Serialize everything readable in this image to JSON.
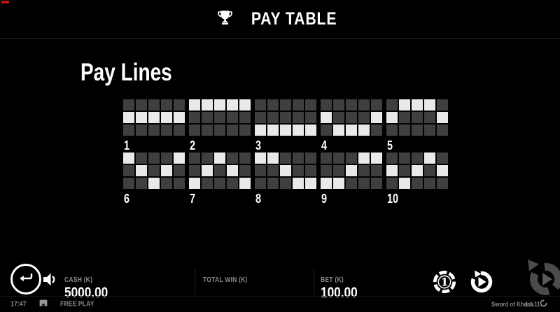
{
  "colors": {
    "background": "#000000",
    "panel_divider": "#2e2e2e",
    "cell_off": "#3f3f3f",
    "cell_on": "#e9e9e9",
    "text_primary": "#ffffff",
    "text_muted": "#8a8a8a",
    "dim_button": "#4b4b4b",
    "marker_red": "#c01414"
  },
  "icons": {
    "header": "trophy-icon",
    "back": "return-arrow-icon",
    "sound": "speaker-icon",
    "chip": "bet-chip-icon",
    "spin": "spin-arrow-icon",
    "big_spin": "big-spin-ring-icon",
    "status_left": "screen-icon",
    "status_right": "provider-logo-icon"
  },
  "header": {
    "title": "PAY TABLE"
  },
  "paylines": {
    "title": "Pay Lines",
    "grid": {
      "rows": 3,
      "cols": 5
    },
    "lines": [
      {
        "number": "1",
        "pattern": [
          1,
          1,
          1,
          1,
          1
        ]
      },
      {
        "number": "2",
        "pattern": [
          0,
          0,
          0,
          0,
          0
        ]
      },
      {
        "number": "3",
        "pattern": [
          2,
          2,
          2,
          2,
          2
        ]
      },
      {
        "number": "4",
        "pattern": [
          1,
          2,
          2,
          2,
          1
        ]
      },
      {
        "number": "5",
        "pattern": [
          1,
          0,
          0,
          0,
          1
        ]
      },
      {
        "number": "6",
        "pattern": [
          0,
          1,
          2,
          1,
          0
        ]
      },
      {
        "number": "7",
        "pattern": [
          2,
          1,
          0,
          1,
          2
        ]
      },
      {
        "number": "8",
        "pattern": [
          0,
          0,
          1,
          2,
          2
        ]
      },
      {
        "number": "9",
        "pattern": [
          2,
          2,
          1,
          0,
          0
        ]
      },
      {
        "number": "10",
        "pattern": [
          1,
          2,
          1,
          0,
          1
        ]
      }
    ]
  },
  "footer": {
    "cash_label": "CASH (K)",
    "cash_value": "5000.00",
    "total_win_label": "TOTAL WIN (K)",
    "total_win_value": "",
    "bet_label": "BET (K)",
    "bet_value": "100.00",
    "chip_value": "1"
  },
  "statusbar": {
    "time": "17:47",
    "mode": "FREE PLAY",
    "game": "Sword of Khans",
    "version": "1.1.11"
  }
}
